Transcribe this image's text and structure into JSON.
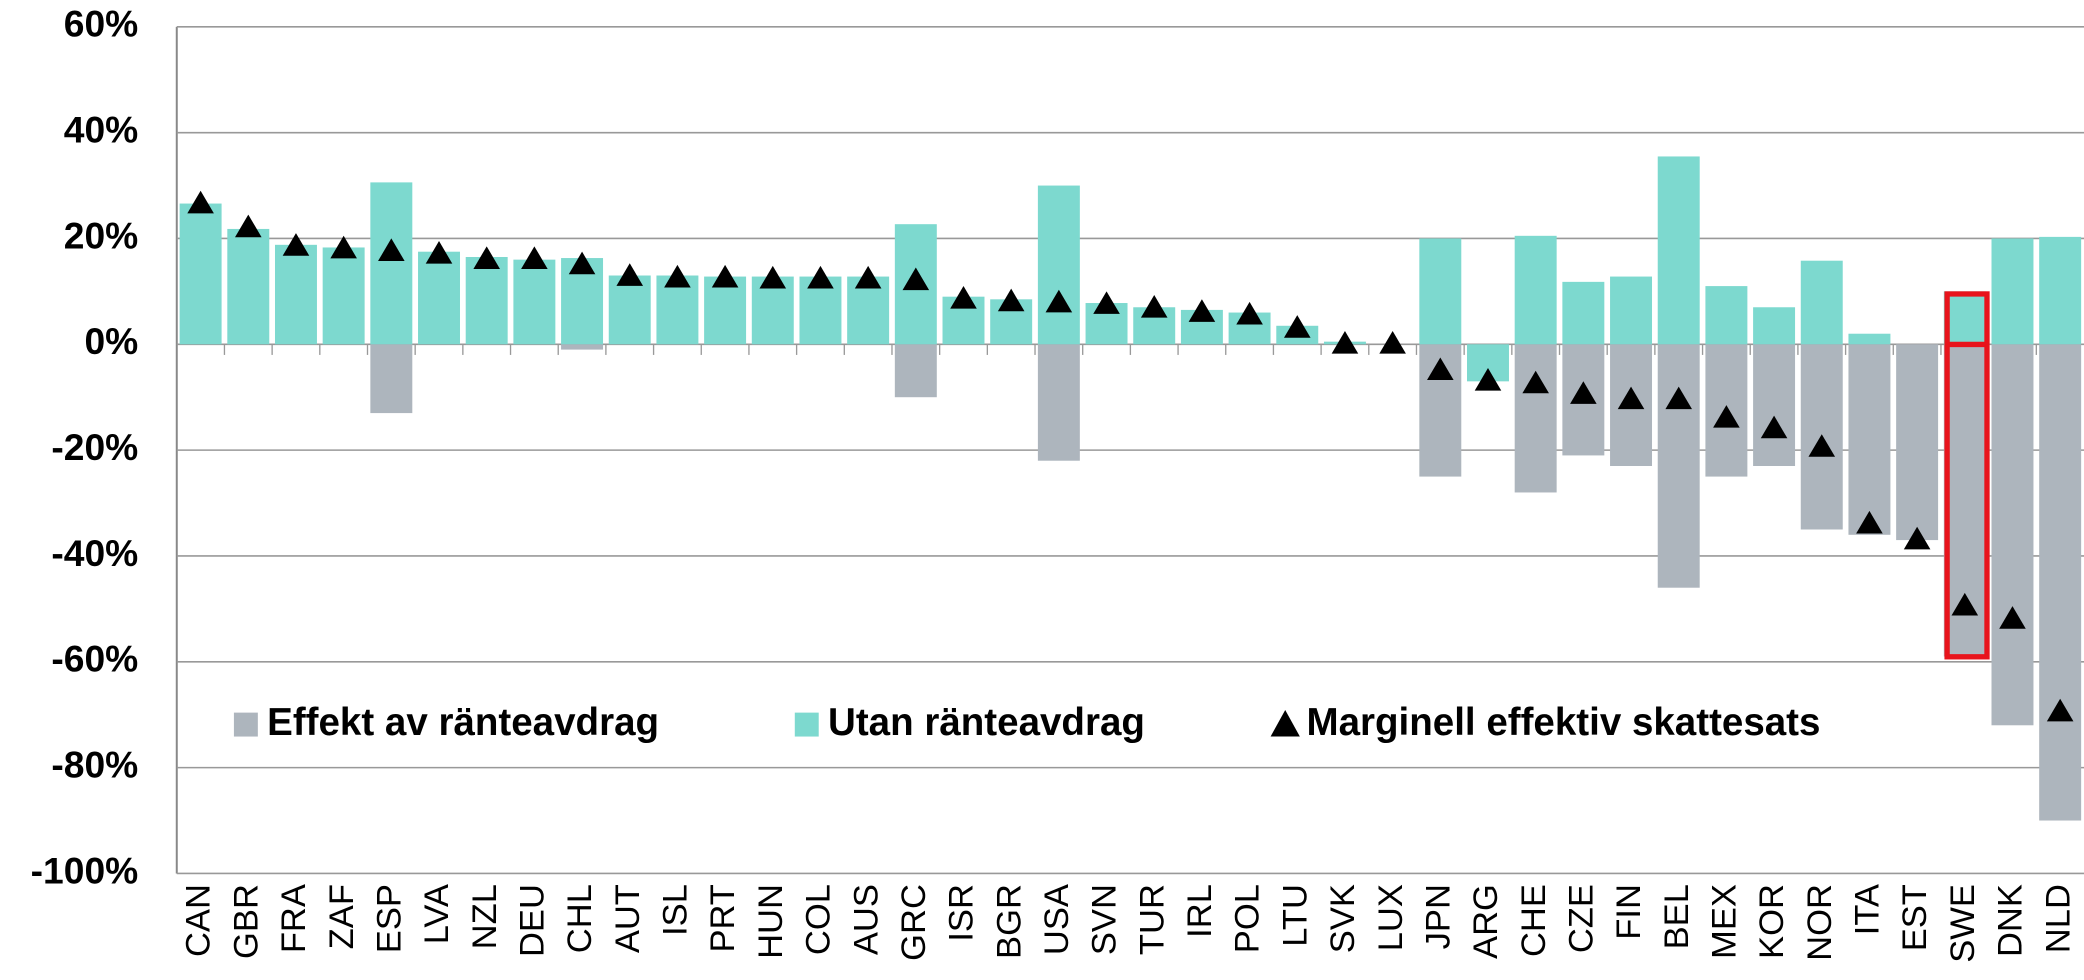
{
  "chart_data": {
    "type": "bar",
    "categories": [
      "CAN",
      "GBR",
      "FRA",
      "ZAF",
      "ESP",
      "LVA",
      "NZL",
      "DEU",
      "CHL",
      "AUT",
      "ISL",
      "PRT",
      "HUN",
      "COL",
      "AUS",
      "GRC",
      "ISR",
      "BGR",
      "USA",
      "SVN",
      "TUR",
      "IRL",
      "POL",
      "LTU",
      "SVK",
      "LUX",
      "JPN",
      "ARG",
      "CHE",
      "CZE",
      "FIN",
      "BEL",
      "MEX",
      "KOR",
      "NOR",
      "ITA",
      "EST",
      "SWE",
      "DNK",
      "NLD"
    ],
    "series": [
      {
        "name": "Effekt av ränteavdrag",
        "color": "#adb5bd",
        "type": "bar",
        "values": [
          0,
          0,
          0,
          0,
          -13,
          0,
          0,
          0,
          -1,
          0,
          0,
          0,
          0,
          0,
          0,
          -10,
          0,
          0,
          -22,
          0,
          0,
          0,
          0,
          0,
          0,
          0,
          -25,
          0,
          -28,
          -21,
          -23,
          -46,
          -25,
          -23,
          -35,
          -36,
          -37,
          -59,
          -72,
          -90
        ]
      },
      {
        "name": "Utan ränteavdrag",
        "color": "#7dd9cf",
        "type": "bar",
        "values": [
          26.6,
          21.8,
          18.8,
          18.3,
          30.6,
          17.5,
          16.5,
          16,
          16.3,
          13,
          13,
          12.8,
          12.8,
          12.8,
          12.8,
          22.7,
          9,
          8.5,
          30,
          7.8,
          7,
          6.5,
          6,
          3.5,
          0.5,
          0,
          20,
          -7,
          20.5,
          11.8,
          12.8,
          35.5,
          11,
          7,
          15.8,
          2,
          0,
          10,
          20,
          20.3
        ]
      },
      {
        "name": "Marginell effektiv skattesats",
        "color": "#000000",
        "type": "scatter",
        "values": [
          26.5,
          22,
          18.5,
          18,
          17.5,
          17,
          16,
          16,
          15,
          12.8,
          12.5,
          12.5,
          12.3,
          12.3,
          12.3,
          12,
          8.5,
          8,
          7.8,
          7.5,
          6.8,
          6,
          5.5,
          3,
          0,
          0,
          -5,
          -7,
          -7.5,
          -9.5,
          -10.5,
          -10.5,
          -14,
          -16,
          -19.5,
          -34,
          -37,
          -49.5,
          -52,
          -69.5
        ]
      }
    ],
    "ylim": [
      -100,
      60
    ],
    "yticks": [
      {
        "value": -100,
        "label": "-100%"
      },
      {
        "value": -80,
        "label": "-80%"
      },
      {
        "value": -60,
        "label": "-60%"
      },
      {
        "value": -40,
        "label": "-40%"
      },
      {
        "value": -20,
        "label": "-20%"
      },
      {
        "value": 0,
        "label": "0%"
      },
      {
        "value": 20,
        "label": "20%"
      },
      {
        "value": 40,
        "label": "40%"
      },
      {
        "value": 60,
        "label": "60%"
      }
    ],
    "grid": true
  }
}
